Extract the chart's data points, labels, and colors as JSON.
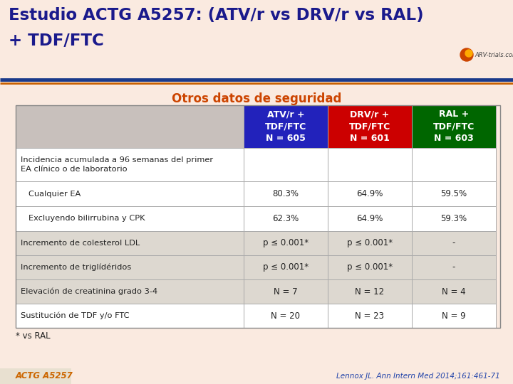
{
  "title_line1": "Estudio ACTG A5257: (ATV/r vs DRV/r vs RAL)",
  "title_line2": "+ TDF/FTC",
  "subtitle": "Otros datos de seguridad",
  "bg_color": "#faeae0",
  "title_bg_color": "#faeae0",
  "header_colors": [
    "#2222bb",
    "#cc0000",
    "#006600"
  ],
  "col_headers": [
    "ATV/r +\nTDF/FTC\nN = 605",
    "DRV/r +\nTDF/FTC\nN = 601",
    "RAL +\nTDF/FTC\nN = 603"
  ],
  "rows": [
    {
      "label": "Incidencia acumulada a 96 semanas del primer\nEA clínico o de laboratorio",
      "values": [
        "",
        "",
        ""
      ],
      "shaded": false,
      "indent": false
    },
    {
      "label": "Cualquier EA",
      "values": [
        "80.3%",
        "64.9%",
        "59.5%"
      ],
      "shaded": false,
      "indent": true
    },
    {
      "label": "Excluyendo bilirrubina y CPK",
      "values": [
        "62.3%",
        "64.9%",
        "59.3%"
      ],
      "shaded": false,
      "indent": true
    },
    {
      "label": "Incremento de colesterol LDL",
      "values": [
        "p ≤ 0.001*",
        "p ≤ 0.001*",
        "-"
      ],
      "shaded": true,
      "indent": false
    },
    {
      "label": "Incremento de triglídéridos",
      "values": [
        "p ≤ 0.001*",
        "p ≤ 0.001*",
        "-"
      ],
      "shaded": true,
      "indent": false
    },
    {
      "label": "Elevación de creatinina grado 3-4",
      "values": [
        "N = 7",
        "N = 12",
        "N = 4"
      ],
      "shaded": true,
      "indent": false
    },
    {
      "label": "Sustitución de TDF y/o FTC",
      "values": [
        "N = 20",
        "N = 23",
        "N = 9"
      ],
      "shaded": false,
      "indent": false
    }
  ],
  "footnote": "* vs RAL",
  "bottom_left": "ACTG A5257",
  "bottom_right": "Lennox JL. Ann Intern Med 2014;161:461-71",
  "title_color": "#1a1a8c",
  "subtitle_color": "#cc4400",
  "shaded_row_color": "#ddd8d0",
  "unshaded_row_color": "#ffffff",
  "table_border_color": "#aaaaaa",
  "header_left_color": "#c8c0bc",
  "orange_line_color": "#c86000",
  "blue_line_color": "#1a3a8a",
  "table_outer_bg": "#f0ebe8"
}
